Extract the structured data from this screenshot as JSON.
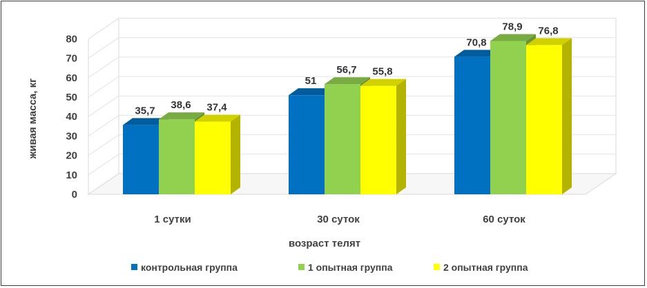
{
  "chart_data": {
    "type": "bar",
    "three_d": true,
    "categories": [
      "1 сутки",
      "30 суток",
      "60 суток"
    ],
    "series": [
      {
        "name": "контрольная группа",
        "color": "#0070C0",
        "values": [
          35.7,
          51,
          70.8
        ],
        "labels": [
          "35,7",
          "51",
          "70,8"
        ]
      },
      {
        "name": "1 опытная группа",
        "color": "#92D050",
        "values": [
          38.6,
          56.7,
          78.9
        ],
        "labels": [
          "38,6",
          "56,7",
          "78,9"
        ]
      },
      {
        "name": "2 опытная группа",
        "color": "#FFFF00",
        "values": [
          37.4,
          55.8,
          76.8
        ],
        "labels": [
          "37,4",
          "55,8",
          "76,8"
        ]
      }
    ],
    "xlabel": "возраст телят",
    "ylabel": "живая масса, кг",
    "ylim": [
      0,
      80
    ],
    "yticks": [
      0,
      10,
      20,
      30,
      40,
      50,
      60,
      70,
      80
    ],
    "grid": false,
    "legend": "bottom"
  }
}
